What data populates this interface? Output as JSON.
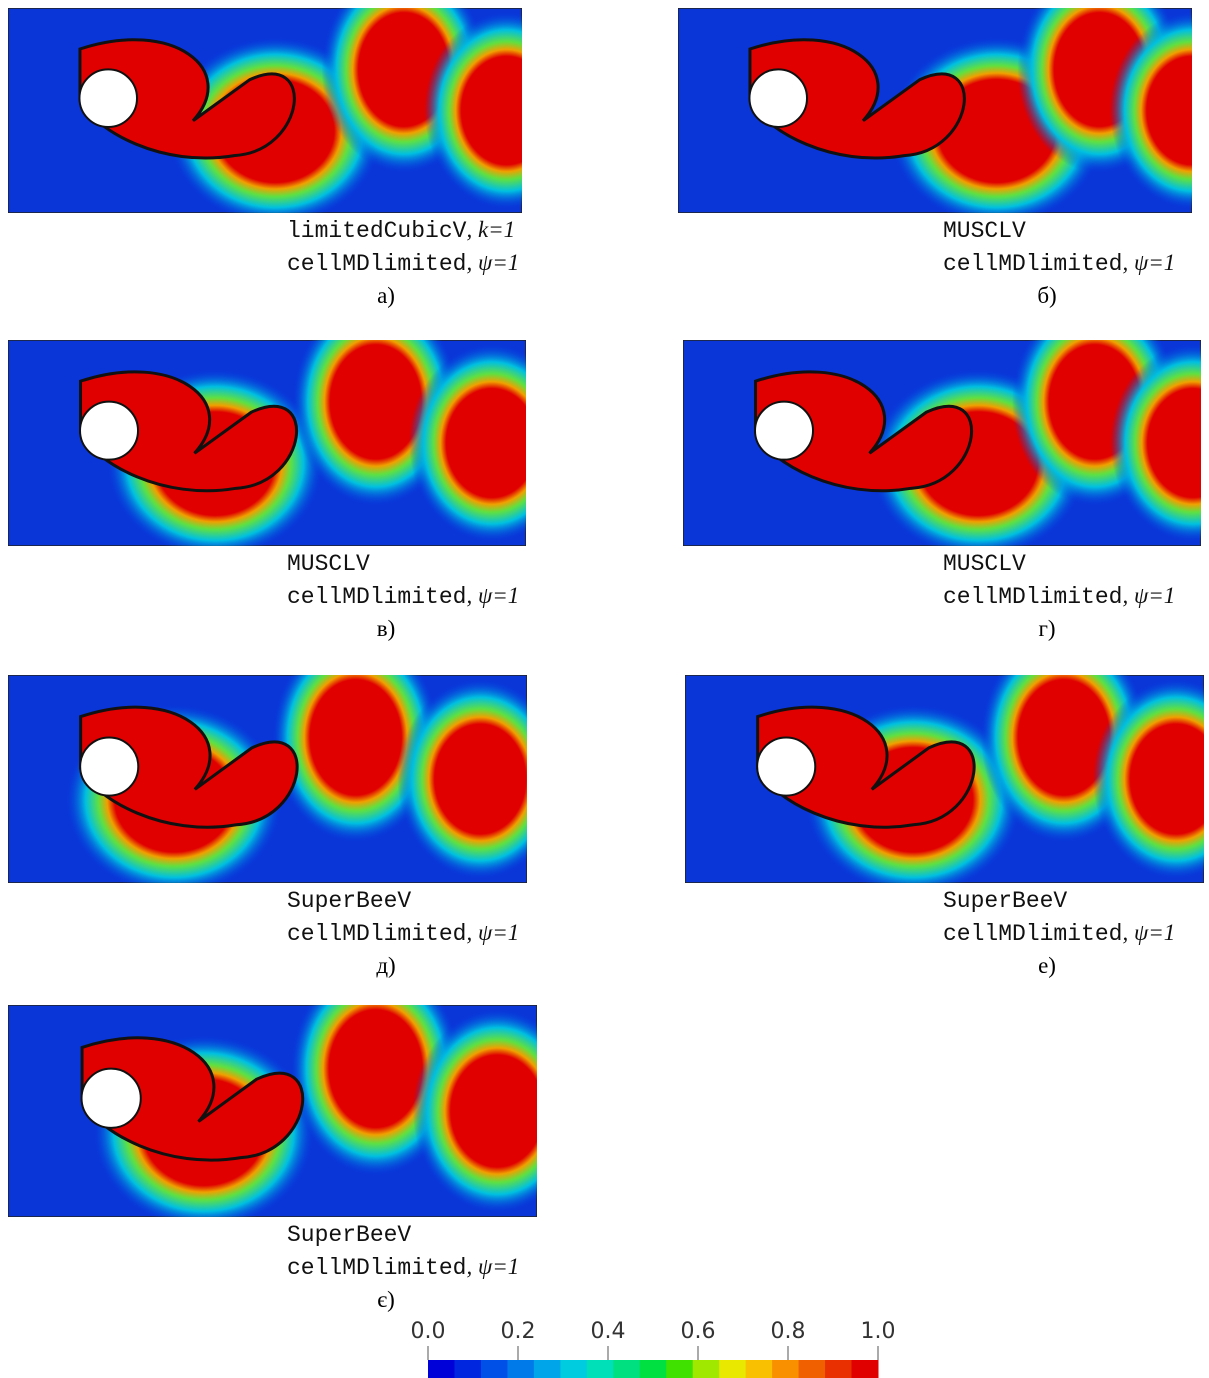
{
  "panels": [
    {
      "scheme": "limitedCubicV",
      "scheme_note": ", k=1",
      "limiter": "cellMDlimited",
      "limiter_note": ", ψ=1",
      "label": "а)"
    },
    {
      "scheme": "MUSCLV",
      "limiter": "cellMDlimited",
      "limiter_note": ", ψ=1",
      "label": "б)"
    },
    {
      "scheme": "MUSCLV",
      "limiter": "cellMDlimited",
      "limiter_note": ", ψ=1",
      "label": "в)"
    },
    {
      "scheme": "MUSCLV",
      "limiter": "cellMDlimited",
      "limiter_note": ", ψ=1",
      "label": "г)"
    },
    {
      "scheme": "SuperBeeV",
      "limiter": "cellMDlimited",
      "limiter_note": ", ψ=1",
      "label": "д)"
    },
    {
      "scheme": "SuperBeeV",
      "limiter": "cellMDlimited",
      "limiter_note": ", ψ=1",
      "label": "е)"
    },
    {
      "scheme": "SuperBeeV",
      "limiter": "cellMDlimited",
      "limiter_note": ", ψ=1",
      "label": "є)"
    }
  ],
  "colorbar": {
    "lim": [
      0,
      1
    ],
    "ticks": [
      {
        "value": 0,
        "label": "0.0"
      },
      0.2,
      0.4,
      0.6,
      0.8,
      {
        "value": 1,
        "label": "1.0"
      }
    ],
    "colors": [
      "#0000d8",
      "#0026e0",
      "#0050e8",
      "#007ae8",
      "#00a4e8",
      "#00cce0",
      "#00e0b8",
      "#00e080",
      "#00e040",
      "#40e000",
      "#a0e800",
      "#e8e800",
      "#f8c000",
      "#f89000",
      "#f06000",
      "#e83000",
      "#e00000"
    ]
  }
}
